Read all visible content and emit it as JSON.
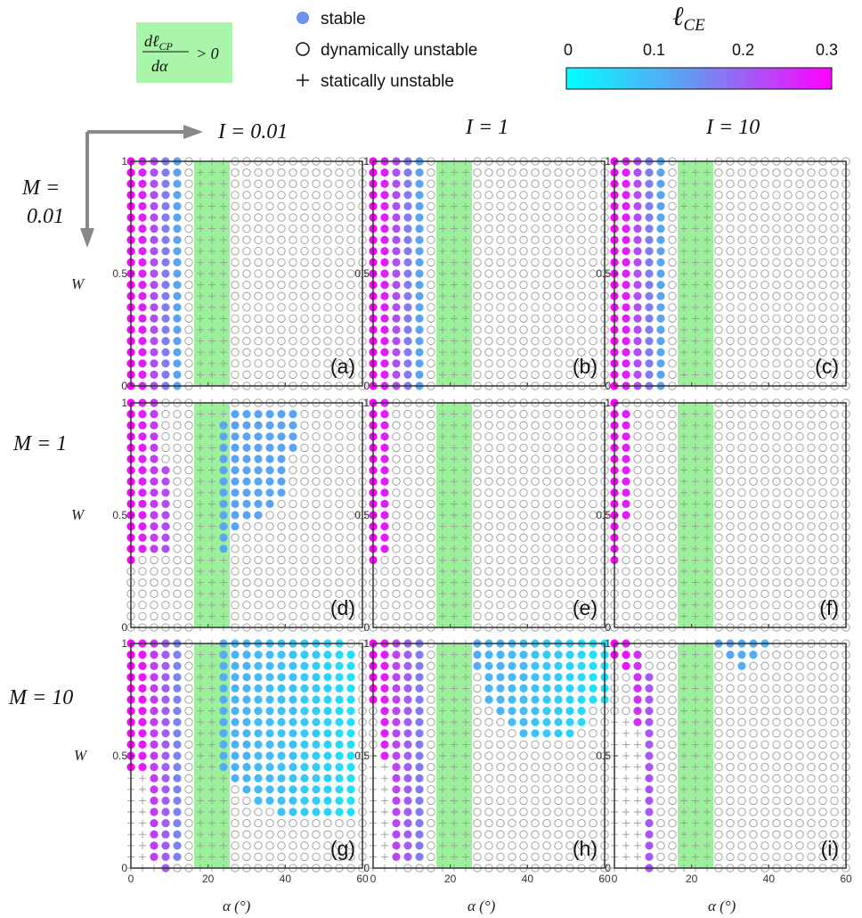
{
  "legend": {
    "stable": "stable",
    "dynamic": "dynamically unstable",
    "static": "statically unstable",
    "formula_num": "dℓ",
    "formula_num_sub": "CP",
    "formula_den": "dα",
    "formula_rel": "> 0"
  },
  "colorbar": {
    "title": "ℓ",
    "title_sub": "CE",
    "ticks": [
      "0",
      "0.1",
      "0.2",
      "0.3"
    ],
    "vmin": 0,
    "vmax": 0.3,
    "colors": [
      "#00ffff",
      "#6f8ff1",
      "#ff00ff"
    ]
  },
  "colors": {
    "green_band": "#9cf09c",
    "frame": "#333333",
    "dyn_ring": "#9a9a9a",
    "static_cross": "#9a9a9a"
  },
  "columns": [
    {
      "label": "I = 0.01"
    },
    {
      "label": "I = 1"
    },
    {
      "label": "I = 10"
    }
  ],
  "rows": [
    {
      "label": "M =",
      "label2": "0.01"
    },
    {
      "label": "M = 1",
      "label2": ""
    },
    {
      "label": "M = 10",
      "label2": ""
    }
  ],
  "axes": {
    "xlabel": "α (°)",
    "ylabel": "W",
    "xticks": [
      "0",
      "20",
      "40",
      "60"
    ],
    "yticks": [
      "0",
      "0.5",
      "1"
    ]
  },
  "chart_data": {
    "type": "scatter",
    "x_values_deg": [
      0,
      3,
      6,
      9,
      12,
      15,
      18,
      21,
      24,
      27,
      30,
      33,
      36,
      39,
      42,
      45,
      48,
      51,
      54,
      57,
      60
    ],
    "y_values_W": [
      0,
      0.05,
      0.1,
      0.15,
      0.2,
      0.25,
      0.3,
      0.35,
      0.4,
      0.45,
      0.5,
      0.55,
      0.6,
      0.65,
      0.7,
      0.75,
      0.8,
      0.85,
      0.9,
      0.95,
      1
    ],
    "xlim": [
      0,
      60
    ],
    "ylim": [
      0,
      1
    ],
    "green_band_deg": [
      18,
      24
    ],
    "markers": {
      "stable": "filled circle colored by ℓ_CE",
      "dynamic": "open circle",
      "static": "plus"
    },
    "panels": [
      {
        "label": "(a)",
        "M": 0.01,
        "I": 0.01,
        "stable_cols": [
          {
            "x": 0,
            "ymin": 0,
            "ymax": 1,
            "l": 0.3
          },
          {
            "x": 3,
            "ymin": 0,
            "ymax": 1,
            "l": 0.27
          },
          {
            "x": 6,
            "ymin": 0,
            "ymax": 1,
            "l": 0.22
          },
          {
            "x": 9,
            "ymin": 0,
            "ymax": 1,
            "l": 0.17
          },
          {
            "x": 12,
            "ymin": 0,
            "ymax": 1,
            "l": 0.12
          }
        ]
      },
      {
        "label": "(b)",
        "M": 0.01,
        "I": 1,
        "stable_cols": [
          {
            "x": 0,
            "ymin": 0,
            "ymax": 1,
            "l": 0.3
          },
          {
            "x": 3,
            "ymin": 0,
            "ymax": 1,
            "l": 0.27
          },
          {
            "x": 6,
            "ymin": 0,
            "ymax": 1,
            "l": 0.22
          },
          {
            "x": 9,
            "ymin": 0,
            "ymax": 1,
            "l": 0.17
          },
          {
            "x": 12,
            "ymin": 0,
            "ymax": 1,
            "l": 0.12
          }
        ]
      },
      {
        "label": "(c)",
        "M": 0.01,
        "I": 10,
        "stable_cols": [
          {
            "x": 0,
            "ymin": 0,
            "ymax": 1,
            "l": 0.3
          },
          {
            "x": 3,
            "ymin": 0,
            "ymax": 1,
            "l": 0.27
          },
          {
            "x": 6,
            "ymin": 0,
            "ymax": 1,
            "l": 0.22
          },
          {
            "x": 9,
            "ymin": 0,
            "ymax": 1,
            "l": 0.17
          },
          {
            "x": 12,
            "ymin": 0,
            "ymax": 1,
            "l": 0.12
          }
        ]
      },
      {
        "label": "(d)",
        "M": 1,
        "I": 0.01,
        "stable_cols": [
          {
            "x": 0,
            "ymin": 0.3,
            "ymax": 1,
            "l": 0.3
          },
          {
            "x": 3,
            "ymin": 0.35,
            "ymax": 1,
            "l": 0.27
          },
          {
            "x": 6,
            "ymin": 0.35,
            "ymax": 1,
            "l": 0.24
          },
          {
            "x": 9,
            "ymin": 0.35,
            "ymax": 0.7,
            "l": 0.22
          },
          {
            "x": 24,
            "ymin": 0.35,
            "ymax": 0.9,
            "l": 0.12
          },
          {
            "x": 27,
            "ymin": 0.45,
            "ymax": 0.95,
            "l": 0.12
          },
          {
            "x": 30,
            "ymin": 0.5,
            "ymax": 0.95,
            "l": 0.12
          },
          {
            "x": 33,
            "ymin": 0.5,
            "ymax": 0.95,
            "l": 0.12
          },
          {
            "x": 36,
            "ymin": 0.55,
            "ymax": 0.95,
            "l": 0.12
          },
          {
            "x": 39,
            "ymin": 0.6,
            "ymax": 0.95,
            "l": 0.12
          },
          {
            "x": 42,
            "ymin": 0.8,
            "ymax": 0.95,
            "l": 0.12
          }
        ]
      },
      {
        "label": "(e)",
        "M": 1,
        "I": 1,
        "stable_cols": [
          {
            "x": 0,
            "ymin": 0.3,
            "ymax": 1,
            "l": 0.3
          },
          {
            "x": 3,
            "ymin": 0.35,
            "ymax": 1,
            "l": 0.27
          }
        ]
      },
      {
        "label": "(f)",
        "M": 1,
        "I": 10,
        "stable_cols": [
          {
            "x": 0,
            "ymin": 0.3,
            "ymax": 1,
            "l": 0.3
          },
          {
            "x": 3,
            "ymin": 0.5,
            "ymax": 0.95,
            "l": 0.27
          }
        ]
      },
      {
        "label": "(g)",
        "M": 10,
        "I": 0.01,
        "stable_cols": [
          {
            "x": 0,
            "ymin": 0.45,
            "ymax": 1,
            "l": 0.3
          },
          {
            "x": 3,
            "ymin": 0.45,
            "ymax": 1,
            "l": 0.28
          },
          {
            "x": 6,
            "ymin": 0.05,
            "ymax": 1,
            "l": 0.24
          },
          {
            "x": 9,
            "ymin": 0,
            "ymax": 1,
            "l": 0.2
          },
          {
            "x": 12,
            "ymin": 0.05,
            "ymax": 1,
            "l": 0.16
          },
          {
            "x": 24,
            "ymin": 0.45,
            "ymax": 1,
            "l": 0.11
          },
          {
            "x": 27,
            "ymin": 0.4,
            "ymax": 1,
            "l": 0.1
          },
          {
            "x": 30,
            "ymin": 0.35,
            "ymax": 1,
            "l": 0.1
          },
          {
            "x": 33,
            "ymin": 0.3,
            "ymax": 1,
            "l": 0.09
          },
          {
            "x": 36,
            "ymin": 0.3,
            "ymax": 1,
            "l": 0.09
          },
          {
            "x": 39,
            "ymin": 0.25,
            "ymax": 1,
            "l": 0.08
          },
          {
            "x": 42,
            "ymin": 0.25,
            "ymax": 1,
            "l": 0.08
          },
          {
            "x": 45,
            "ymin": 0.25,
            "ymax": 1,
            "l": 0.07
          },
          {
            "x": 48,
            "ymin": 0.25,
            "ymax": 1,
            "l": 0.07
          },
          {
            "x": 51,
            "ymin": 0.25,
            "ymax": 1,
            "l": 0.06
          },
          {
            "x": 54,
            "ymin": 0.25,
            "ymax": 1,
            "l": 0.05
          },
          {
            "x": 57,
            "ymin": 0.25,
            "ymax": 0.95,
            "l": 0.04
          }
        ],
        "static_region": {
          "xmax": 6,
          "ymax": 0.4
        }
      },
      {
        "label": "(h)",
        "M": 10,
        "I": 1,
        "stable_cols": [
          {
            "x": 0,
            "ymin": 0.75,
            "ymax": 1,
            "l": 0.3
          },
          {
            "x": 3,
            "ymin": 0.5,
            "ymax": 1,
            "l": 0.27
          },
          {
            "x": 6,
            "ymin": 0.05,
            "ymax": 1,
            "l": 0.23
          },
          {
            "x": 9,
            "ymin": 0.05,
            "ymax": 1,
            "l": 0.2
          },
          {
            "x": 12,
            "ymin": 0.05,
            "ymax": 1,
            "l": 0.17
          },
          {
            "x": 27,
            "ymin": 0.9,
            "ymax": 1,
            "l": 0.11
          },
          {
            "x": 30,
            "ymin": 0.75,
            "ymax": 1,
            "l": 0.1
          },
          {
            "x": 33,
            "ymin": 0.7,
            "ymax": 1,
            "l": 0.1
          },
          {
            "x": 36,
            "ymin": 0.65,
            "ymax": 1,
            "l": 0.09
          },
          {
            "x": 39,
            "ymin": 0.6,
            "ymax": 1,
            "l": 0.09
          },
          {
            "x": 42,
            "ymin": 0.6,
            "ymax": 1,
            "l": 0.08
          },
          {
            "x": 45,
            "ymin": 0.6,
            "ymax": 1,
            "l": 0.07
          },
          {
            "x": 48,
            "ymin": 0.6,
            "ymax": 1,
            "l": 0.07
          },
          {
            "x": 51,
            "ymin": 0.6,
            "ymax": 1,
            "l": 0.06
          },
          {
            "x": 54,
            "ymin": 0.65,
            "ymax": 1,
            "l": 0.05
          },
          {
            "x": 57,
            "ymin": 0.75,
            "ymax": 1,
            "l": 0.04
          },
          {
            "x": 60,
            "ymin": 0.75,
            "ymax": 1,
            "l": 0.04
          }
        ],
        "static_region": {
          "xmax": 6,
          "ymax": 0.5
        }
      },
      {
        "label": "(i)",
        "M": 10,
        "I": 10,
        "stable_cols": [
          {
            "x": 0,
            "ymin": 0.95,
            "ymax": 1,
            "l": 0.3
          },
          {
            "x": 3,
            "ymin": 0.9,
            "ymax": 1,
            "l": 0.28
          },
          {
            "x": 6,
            "ymin": 0.65,
            "ymax": 0.95,
            "l": 0.25
          },
          {
            "x": 9,
            "ymin": 0,
            "ymax": 0.85,
            "l": 0.21
          },
          {
            "x": 27,
            "ymin": 1,
            "ymax": 1,
            "l": 0.12
          },
          {
            "x": 30,
            "ymin": 0.95,
            "ymax": 1,
            "l": 0.12
          },
          {
            "x": 33,
            "ymin": 0.9,
            "ymax": 1,
            "l": 0.11
          },
          {
            "x": 36,
            "ymin": 0.95,
            "ymax": 1,
            "l": 0.11
          },
          {
            "x": 39,
            "ymin": 1,
            "ymax": 1,
            "l": 0.1
          }
        ],
        "static_region": {
          "xmax": 6,
          "ymax": 0.65
        }
      }
    ]
  }
}
